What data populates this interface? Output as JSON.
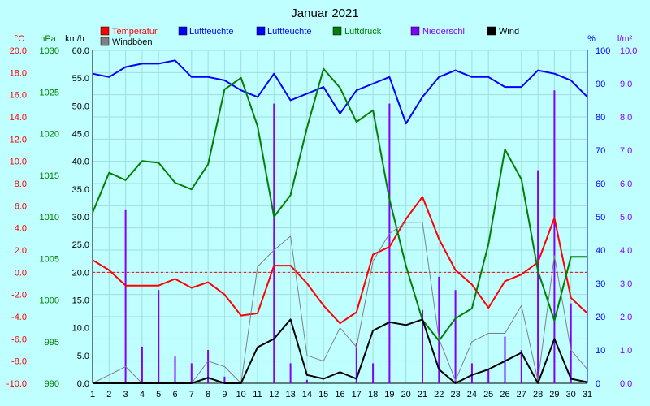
{
  "chart_data": {
    "type": "line",
    "title": "Januar 2021",
    "x": [
      1,
      2,
      3,
      4,
      5,
      6,
      7,
      8,
      9,
      10,
      11,
      12,
      13,
      14,
      15,
      16,
      17,
      18,
      19,
      20,
      21,
      22,
      23,
      24,
      25,
      26,
      27,
      28,
      29,
      30,
      31
    ],
    "axes": {
      "temp": {
        "unit": "°C",
        "min": -10,
        "max": 20,
        "ticks": [
          "20.0",
          "18.0",
          "16.0",
          "14.0",
          "12.0",
          "10.0",
          "8.0",
          "6.0",
          "4.0",
          "2.0",
          "0.0",
          "-2.0",
          "-4.0",
          "-6.0",
          "-8.0",
          "-10.0"
        ],
        "color": "#ff0000"
      },
      "press": {
        "unit": "hPa",
        "min": 990,
        "max": 1030,
        "ticks": [
          "1030",
          "1025",
          "1020",
          "1015",
          "1010",
          "1005",
          "1000",
          "995",
          "990"
        ],
        "color": "#008000"
      },
      "wind": {
        "unit": "km/h",
        "min": 0,
        "max": 60,
        "ticks": [
          "60.0",
          "55.0",
          "50.0",
          "45.0",
          "40.0",
          "35.0",
          "30.0",
          "25.0",
          "20.0",
          "15.0",
          "10.0",
          "5.0",
          "0.0"
        ],
        "color": "#000000"
      },
      "hum": {
        "unit": "%",
        "min": 0,
        "max": 100,
        "ticks": [
          "100",
          "90",
          "80",
          "70",
          "60",
          "50",
          "40",
          "30",
          "20",
          "10",
          "0"
        ],
        "color": "#0000ff"
      },
      "precip": {
        "unit": "l/m²",
        "min": 0,
        "max": 10,
        "ticks": [
          "10.0",
          "9.0",
          "8.0",
          "7.0",
          "6.0",
          "5.0",
          "4.0",
          "3.0",
          "2.0",
          "1.0",
          "0.0"
        ],
        "color": "#8000ff"
      }
    },
    "legend": [
      {
        "label": "Temperatur",
        "color": "#ff0000"
      },
      {
        "label": "Luftfeuchte",
        "color": "#0000ff"
      },
      {
        "label": "Luftfeuchte",
        "color": "#0000ff"
      },
      {
        "label": "Luftdruck",
        "color": "#008000"
      },
      {
        "label": "Niederschl.",
        "color": "#8000ff"
      },
      {
        "label": "Wind",
        "color": "#000000"
      },
      {
        "label": "Windböen",
        "color": "#808080"
      }
    ],
    "series": [
      {
        "name": "Temperatur",
        "axis": "temp",
        "color": "#ff0000",
        "width": 2,
        "values": [
          1.1,
          0.2,
          -1.2,
          -1.2,
          -1.2,
          -0.6,
          -1.4,
          -0.9,
          -2.0,
          -3.9,
          -3.7,
          0.6,
          0.6,
          -1.0,
          -3.0,
          -4.6,
          -3.6,
          1.6,
          2.3,
          4.8,
          6.8,
          3.0,
          0.2,
          -1.1,
          -3.2,
          -0.8,
          -0.2,
          0.9,
          4.9,
          -2.3,
          -3.7
        ]
      },
      {
        "name": "Luftfeuchte",
        "axis": "hum",
        "color": "#0000ff",
        "width": 2,
        "values": [
          93,
          92,
          95,
          96,
          96,
          97,
          92,
          92,
          91,
          88,
          86,
          93,
          85,
          87,
          89,
          81,
          88,
          90,
          92,
          78,
          86,
          92,
          94,
          92,
          92,
          89,
          89,
          94,
          93,
          91,
          86
        ]
      },
      {
        "name": "Luftdruck",
        "axis": "press",
        "color": "#008000",
        "width": 2,
        "values": [
          1010.5,
          1015.3,
          1014.4,
          1016.7,
          1016.5,
          1014.1,
          1013.3,
          1016.3,
          1025.3,
          1026.7,
          1020.9,
          1010.0,
          1012.6,
          1020.7,
          1027.8,
          1025.5,
          1021.4,
          1022.8,
          1012.1,
          1004.1,
          997.6,
          995.1,
          997.8,
          999.0,
          1006.7,
          1018.1,
          1014.5,
          1003.5,
          997.5,
          1005.2,
          1005.2
        ]
      },
      {
        "name": "Windböen",
        "axis": "wind",
        "color": "#808080",
        "width": 1,
        "values": [
          0.0,
          1.5,
          3.0,
          0.0,
          0.0,
          0.0,
          0.0,
          4.0,
          3.0,
          0.0,
          21.0,
          24.0,
          26.5,
          5.0,
          4.0,
          10.0,
          6.5,
          22.0,
          27.0,
          29.0,
          29.0,
          8.0,
          0.5,
          7.5,
          9.0,
          9.0,
          14.0,
          0.5,
          23.0,
          6.0,
          2.5
        ]
      },
      {
        "name": "Wind",
        "axis": "wind",
        "color": "#000000",
        "width": 2,
        "values": [
          0.0,
          0.0,
          0.0,
          0.0,
          0.0,
          0.0,
          0.0,
          1.0,
          0.0,
          0.0,
          6.5,
          8.0,
          11.5,
          1.5,
          0.8,
          2.0,
          0.8,
          9.5,
          11.0,
          10.5,
          11.5,
          2.5,
          0.0,
          1.5,
          2.5,
          4.0,
          5.5,
          0.0,
          8.0,
          0.8,
          0.2
        ]
      }
    ],
    "precipitation": {
      "name": "Niederschl.",
      "axis": "precip",
      "color": "#8000ff",
      "values": [
        0,
        0,
        5.2,
        1.1,
        2.8,
        0.8,
        0.6,
        1.0,
        0.2,
        0,
        0,
        8.4,
        0.6,
        0.1,
        0,
        0,
        1.2,
        0.6,
        8.4,
        0,
        2.2,
        3.2,
        2.8,
        0.6,
        0.4,
        1.4,
        1.0,
        6.4,
        8.8,
        2.4,
        0
      ]
    }
  }
}
